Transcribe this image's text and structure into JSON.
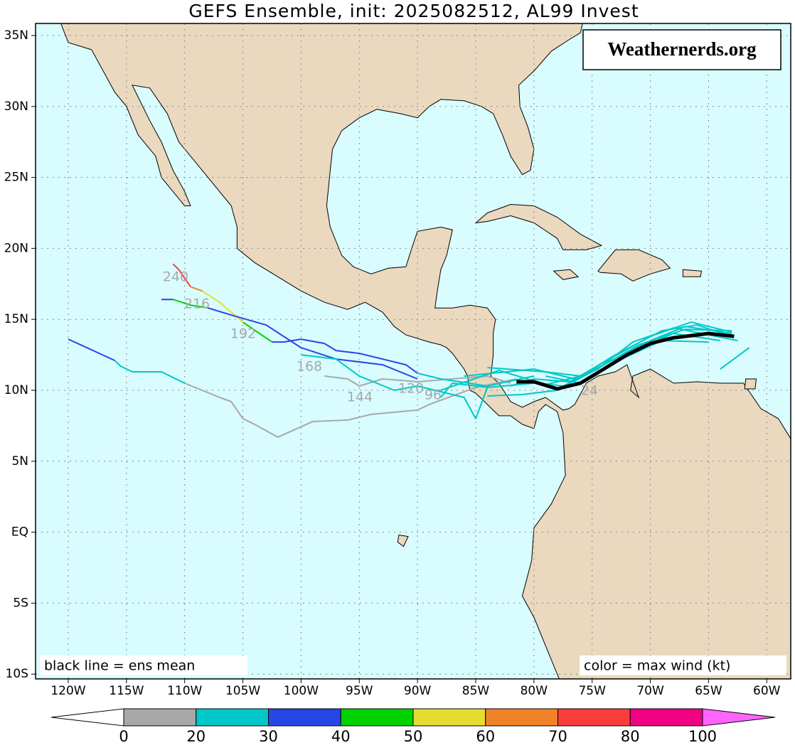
{
  "header": {
    "title": "GEFS Ensemble, init: 2025082512, AL99 Invest",
    "watermark": "Weathernerds.org"
  },
  "map": {
    "xlim": [
      -122.81,
      -57.94
    ],
    "ylim": [
      -10.34,
      35.85
    ],
    "xticks": [
      {
        "value": -120,
        "label": "120W"
      },
      {
        "value": -115,
        "label": "115W"
      },
      {
        "value": -110,
        "label": "110W"
      },
      {
        "value": -105,
        "label": "105W"
      },
      {
        "value": -100,
        "label": "100W"
      },
      {
        "value": -95,
        "label": "95W"
      },
      {
        "value": -90,
        "label": "90W"
      },
      {
        "value": -85,
        "label": "85W"
      },
      {
        "value": -80,
        "label": "80W"
      },
      {
        "value": -75,
        "label": "75W"
      },
      {
        "value": -70,
        "label": "70W"
      },
      {
        "value": -65,
        "label": "65W"
      },
      {
        "value": -60,
        "label": "60W"
      }
    ],
    "yticks": [
      {
        "value": 35,
        "label": "35N"
      },
      {
        "value": 30,
        "label": "30N"
      },
      {
        "value": 25,
        "label": "25N"
      },
      {
        "value": 20,
        "label": "20N"
      },
      {
        "value": 15,
        "label": "15N"
      },
      {
        "value": 10,
        "label": "10N"
      },
      {
        "value": 5,
        "label": "5N"
      },
      {
        "value": 0,
        "label": "EQ"
      },
      {
        "value": -5,
        "label": "5S"
      },
      {
        "value": -10,
        "label": "10S"
      }
    ],
    "grid": true,
    "ocean_color": "#d9fcfe",
    "land_color": "#ead9bf",
    "mean_color": "#000000"
  },
  "tracks": {
    "hour_labels": [
      "240",
      "216",
      "192",
      "168",
      "144",
      "120",
      "96",
      "24"
    ]
  },
  "notes": {
    "left": "black line = ens mean",
    "right": "color = max wind (kt)"
  },
  "colorbar": {
    "levels": [
      0,
      20,
      30,
      40,
      50,
      60,
      70,
      80,
      100
    ],
    "colors": [
      "#a8a8a8",
      "#00c8c8",
      "#2846e6",
      "#00d200",
      "#e6dc32",
      "#f08228",
      "#fa3c3c",
      "#f00082"
    ],
    "under_color": "#ffffff",
    "over_color": "#ff64ff"
  }
}
